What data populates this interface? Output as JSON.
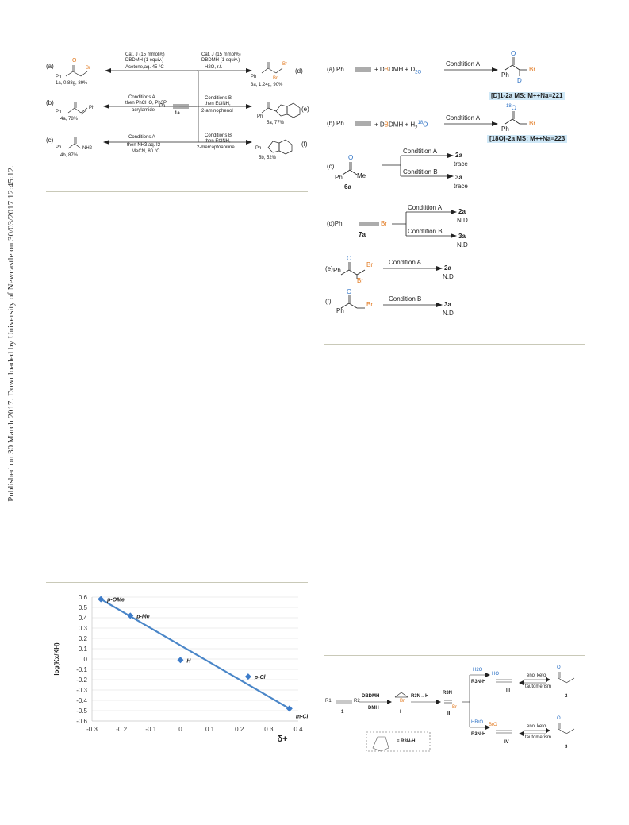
{
  "margin_note": "Published on 30 March 2017. Downloaded by University of Newcastle on 30/03/2017 12:45:12.",
  "scheme_top_left": {
    "center": {
      "ph": "Ph",
      "label": "1a"
    },
    "a": {
      "tag": "(a)",
      "cond1": "Cat. J (15 mmol%)",
      "cond2": "DBDMH (1 equiv.)",
      "cond3": "Acetone,aq. 45 °C",
      "ph": "Ph",
      "br": "Br",
      "product": "1a, 0.88g, 89%"
    },
    "b": {
      "tag": "(b)",
      "cond1": "Conditions A",
      "cond2": "then PhCHO, Ph3P",
      "cond3": "acrylamide",
      "ph1": "Ph",
      "ph2": "Ph",
      "product": "4a, 78%"
    },
    "c": {
      "tag": "(c)",
      "cond1": "Conditions A",
      "cond2": "then NH3,aq. I2",
      "cond3": "MeCN, 80 °C",
      "ph": "Ph",
      "nh2": "NH2",
      "product": "4b, 87%"
    },
    "d": {
      "tag": "(d)",
      "cond1": "Cat. J (15 mmol%)",
      "cond2": "DBDMH (1 equiv.)",
      "cond3": "H2O, r.t.",
      "ph": "Ph",
      "br1": "Br",
      "br2": "Br",
      "product": "3a, 1.24g, 90%"
    },
    "e": {
      "tag": "(e)",
      "cond1": "Conditions B",
      "cond2": "then Et3NH,",
      "cond3": "2-aminophenol",
      "ph": "Ph",
      "product": "5a, 77%"
    },
    "f": {
      "tag": "(f)",
      "cond1": "Conditions B",
      "cond2": "then Et3NH,",
      "cond3": "2-mercaptoaniline",
      "ph": "Ph",
      "product": "5b, 52%"
    }
  },
  "scheme_right": {
    "a": {
      "tag": "(a) Ph",
      "reag1": "+ D",
      "reag_B": "B",
      "reag2": "DMH + D",
      "reag3": "2O",
      "condition": "Condtition A",
      "ph": "Ph",
      "o": "O",
      "d": "D",
      "br": "Br",
      "label": "[D]1-2a MS: M++Na=221"
    },
    "b": {
      "tag": "(b) Ph",
      "reag1": "+ D",
      "reag_B": "B",
      "reag2": "DMH + H",
      "reag3": "2",
      "reag_iso": "18",
      "reag4": "O",
      "condition": "Condtition A",
      "ph": "Ph",
      "iso": "18",
      "o": "O",
      "br": "Br",
      "label": "[18O]-2a MS: M++Na=223"
    },
    "c": {
      "tag": "(c)",
      "o": "O",
      "ph": "Ph",
      "me": "Me",
      "sub": "6a",
      "condA": "Condtition A",
      "prodA": "2a",
      "yieldA": "trace",
      "condB": "Condtition B",
      "prodB": "3a",
      "yieldB": "trace"
    },
    "d": {
      "tag": "(d)Ph",
      "br": "Br",
      "sub": "7a",
      "condA": "Condtition A",
      "prodA": "2a",
      "yieldA": "N.D",
      "condB": "Condtition B",
      "prodB": "3a",
      "yieldB": "N.D"
    },
    "e": {
      "tag": "(e)",
      "ph": "Ph",
      "o": "O",
      "br1": "Br",
      "br2": "Br",
      "cond": "Condition A",
      "prod": "2a",
      "yield": "N.D"
    },
    "f": {
      "tag": "(f)",
      "ph": "Ph",
      "o": "O",
      "br": "Br",
      "cond": "Condition B",
      "prod": "3a",
      "yield": "N.D"
    }
  },
  "mechanism": {
    "r1": "R1",
    "r2": "R2",
    "label1": "1",
    "reag_top": "DBDMH",
    "reag_bot": "DMH",
    "int_I": "I",
    "int_II": "II",
    "step2": "R3N→H",
    "r3n": "R3N",
    "br": "Br",
    "h2o": "H2O",
    "hbro": "HBrO",
    "r3nh1": "R3N-H",
    "r3nh2": "R3N-H",
    "ho": "HO",
    "bro": "BrO",
    "III": "III",
    "IV": "IV",
    "enolketo1": "enol keto",
    "taut1": "tautomerism",
    "enolketo2": "enol keto",
    "taut2": "tautomerism",
    "o1": "O",
    "o2": "O",
    "prod2": "2",
    "prod3": "3",
    "box": "= R3N-H"
  },
  "chart_data": {
    "type": "scatter",
    "title": "",
    "xlabel": "δ+",
    "ylabel": "log(Kx/KH)",
    "xlim": [
      -0.3,
      0.4
    ],
    "ylim": [
      -0.6,
      0.6
    ],
    "xticks": [
      "-0.3",
      "-0.2",
      "-0.1",
      "0",
      "0.1",
      "0.2",
      "0.3",
      "0.4"
    ],
    "yticks": [
      "0.6",
      "0.5",
      "0.4",
      "0.3",
      "0.2",
      "0.1",
      "0",
      "-0.1",
      "-0.2",
      "-0.3",
      "-0.4",
      "-0.5",
      "-0.6"
    ],
    "grid": true,
    "points": [
      {
        "x": -0.27,
        "y": 0.58,
        "label": "p-OMe"
      },
      {
        "x": -0.17,
        "y": 0.42,
        "label": "p-Me"
      },
      {
        "x": 0.0,
        "y": -0.01,
        "label": "H"
      },
      {
        "x": 0.23,
        "y": -0.17,
        "label": "p-Cl"
      },
      {
        "x": 0.37,
        "y": -0.48,
        "label": "m-Cl"
      }
    ],
    "fit": {
      "x": [
        -0.27,
        0.37
      ],
      "y": [
        0.58,
        -0.48
      ]
    },
    "colors": {
      "point": "#3d7cc9",
      "line": "#4a86c8",
      "grid": "#dedede"
    }
  }
}
